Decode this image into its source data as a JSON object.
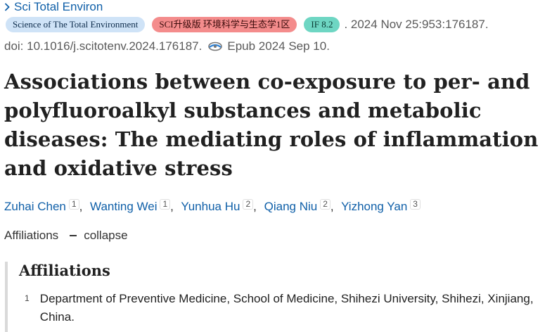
{
  "journal": {
    "name": "Sci Total Environ"
  },
  "badges": {
    "journal_full": "Science of The Total Environment",
    "sci_rank": "SCI升级版 环境科学与生态学1区",
    "impact_factor": "IF 8.2"
  },
  "citation": {
    "date_volume": ". 2024 Nov 25:953:176187.",
    "doi": "doi: 10.1016/j.scitotenv.2024.176187.",
    "epub": "Epub 2024 Sep 10."
  },
  "article": {
    "title": "Associations between co-exposure to per- and polyfluoroalkyl substances and metabolic diseases: The mediating roles of inflammation and oxidative stress"
  },
  "authors": [
    {
      "name": "Zuhai Chen",
      "aff": "1"
    },
    {
      "name": "Wanting Wei",
      "aff": "1"
    },
    {
      "name": "Yunhua Hu",
      "aff": "2"
    },
    {
      "name": "Qiang Niu",
      "aff": "2"
    },
    {
      "name": "Yizhong Yan",
      "aff": "3"
    }
  ],
  "affiliations_toggle": {
    "label": "Affiliations",
    "action": "collapse"
  },
  "affiliations": {
    "heading": "Affiliations",
    "items": [
      {
        "num": "1",
        "text": "Department of Preventive Medicine, School of Medicine, Shihezi University, Shihezi, Xinjiang, China."
      }
    ]
  },
  "icons": {
    "journal_chevron": "chevron-right-icon",
    "epub": "epub-eye-icon"
  },
  "colors": {
    "link": "#0f5fa8",
    "badge_journal": "#cfe3f7",
    "badge_sci": "#f48c8c",
    "badge_if": "#6ed6c3"
  }
}
